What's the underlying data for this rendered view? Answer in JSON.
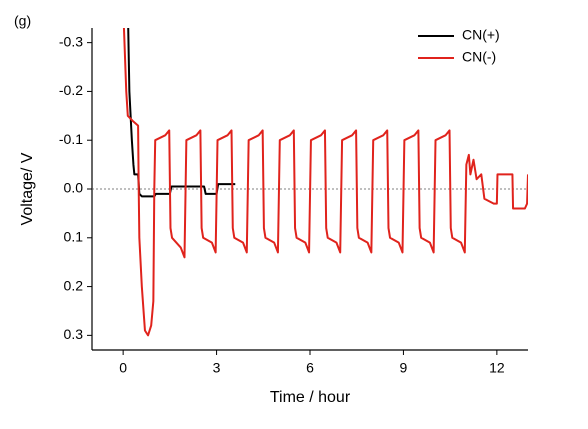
{
  "chart_data": {
    "type": "line",
    "panel_label": "(g)",
    "xlabel": "Time / hour",
    "ylabel": "Voltage/ V",
    "xlim": [
      -1,
      13
    ],
    "xticks": [
      0,
      3,
      6,
      9,
      12
    ],
    "ylim": [
      -0.33,
      0.33
    ],
    "y_reversed": true,
    "yticks": [
      -0.3,
      -0.2,
      -0.1,
      {
        "value": 0,
        "label": "0.0"
      },
      0.1,
      0.2,
      0.3
    ],
    "reference_line": 0,
    "legend": "upper right",
    "series": [
      {
        "name": "CN(+)",
        "color": "#000000",
        "x": [
          0.16,
          0.2,
          0.28,
          0.33,
          0.36,
          0.48,
          0.52,
          0.6,
          1.0,
          1.05,
          1.5,
          1.55,
          2.6,
          2.65,
          3.0,
          3.05,
          3.6
        ],
        "values": [
          -0.34,
          -0.2,
          -0.1,
          -0.05,
          -0.03,
          -0.03,
          0.01,
          0.015,
          0.015,
          0.01,
          0.01,
          -0.005,
          -0.005,
          0.01,
          0.01,
          -0.01,
          -0.01
        ]
      },
      {
        "name": "CN(-)",
        "color": "#e0231c",
        "x": [
          0.02,
          0.1,
          0.15,
          0.3,
          0.48,
          0.5,
          0.52,
          0.6,
          0.7,
          0.8,
          0.9,
          0.97,
          1.0,
          1.03,
          1.35,
          1.48,
          1.52,
          1.57,
          1.85,
          1.97,
          2.03,
          2.35,
          2.48,
          2.52,
          2.57,
          2.85,
          2.97,
          3.03,
          3.35,
          3.48,
          3.52,
          3.57,
          3.85,
          3.97,
          4.03,
          4.35,
          4.48,
          4.52,
          4.57,
          4.85,
          4.97,
          5.03,
          5.35,
          5.48,
          5.52,
          5.57,
          5.85,
          5.97,
          6.03,
          6.35,
          6.48,
          6.52,
          6.57,
          6.85,
          6.97,
          7.03,
          7.35,
          7.48,
          7.52,
          7.57,
          7.85,
          7.97,
          8.03,
          8.35,
          8.48,
          8.52,
          8.57,
          8.85,
          8.97,
          9.03,
          9.35,
          9.48,
          9.52,
          9.57,
          9.85,
          9.97,
          10.03,
          10.35,
          10.48,
          10.52,
          10.57,
          10.85,
          10.97,
          11.02,
          11.1,
          11.15,
          11.25,
          11.35,
          11.5,
          11.6,
          11.9,
          12.0,
          12.02,
          12.5,
          12.52,
          12.9,
          12.97,
          13.0
        ],
        "values": [
          -0.34,
          -0.2,
          -0.15,
          -0.14,
          -0.13,
          0.0,
          0.1,
          0.2,
          0.29,
          0.3,
          0.28,
          0.23,
          0.0,
          -0.1,
          -0.11,
          -0.12,
          0.08,
          0.1,
          0.12,
          0.14,
          -0.1,
          -0.11,
          -0.12,
          0.08,
          0.1,
          0.11,
          0.13,
          -0.1,
          -0.11,
          -0.12,
          0.08,
          0.1,
          0.11,
          0.13,
          -0.1,
          -0.11,
          -0.12,
          0.08,
          0.1,
          0.11,
          0.13,
          -0.1,
          -0.11,
          -0.12,
          0.08,
          0.1,
          0.11,
          0.13,
          -0.1,
          -0.11,
          -0.12,
          0.08,
          0.1,
          0.11,
          0.13,
          -0.1,
          -0.11,
          -0.12,
          0.08,
          0.1,
          0.11,
          0.13,
          -0.1,
          -0.11,
          -0.12,
          0.08,
          0.1,
          0.11,
          0.13,
          -0.1,
          -0.11,
          -0.12,
          0.08,
          0.1,
          0.11,
          0.13,
          -0.1,
          -0.11,
          -0.12,
          0.08,
          0.1,
          0.11,
          0.13,
          -0.05,
          -0.07,
          -0.03,
          -0.06,
          -0.02,
          -0.03,
          0.02,
          0.03,
          0.03,
          -0.03,
          -0.03,
          0.04,
          0.04,
          0.03,
          -0.03
        ]
      }
    ]
  }
}
